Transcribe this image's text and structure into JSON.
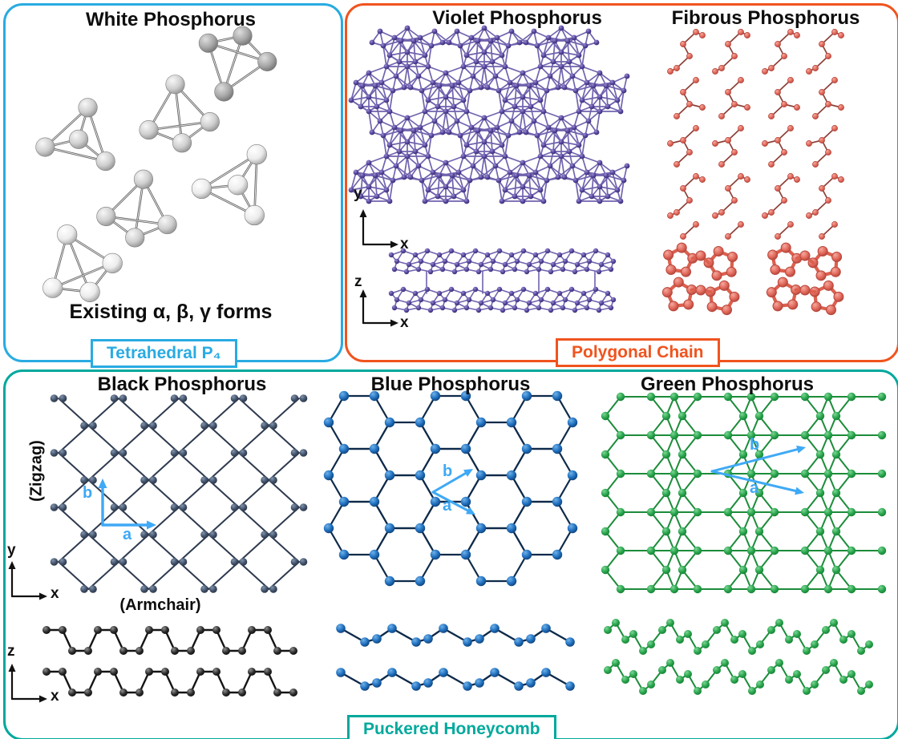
{
  "colors": {
    "cyan": "#29ABE2",
    "orange": "#F0541E",
    "teal": "#00A99D",
    "vector": "#3FA9F5",
    "axis": "#111111",
    "violet_atom": "#54439B",
    "violet_bond": "#7163AE",
    "fibrous_atom": "#E2695C",
    "fibrous_bond": "#8C4038",
    "fibrous_side_bond": "#DC604F",
    "black_atom": "#42526B",
    "black_bond": "#2E3A4F",
    "black_side_bond": "#151515",
    "blue_atom": "#1F6FBE",
    "blue_bond": "#0E2A4A",
    "green_atom": "#2AA44D",
    "green_bond": "#1C8C3A"
  },
  "panels": {
    "white": {
      "title": "White Phosphorus",
      "note": "Existing α, β, γ forms",
      "tag": "Tetrahedral P₄"
    },
    "top_right": {
      "violet_title": "Violet Phosphorus",
      "fibrous_title": "Fibrous Phosphorus",
      "tag": "Polygonal Chain"
    },
    "bottom": {
      "black_title": "Black Phosphorus",
      "blue_title": "Blue Phosphorus",
      "green_title": "Green Phosphorus",
      "zigzag": "(Zigzag)",
      "armchair": "(Armchair)",
      "tag": "Puckered Honeycomb"
    }
  },
  "axes": {
    "x": "x",
    "y": "y",
    "z": "z"
  },
  "vectors": {
    "a": "a",
    "b": "b"
  }
}
